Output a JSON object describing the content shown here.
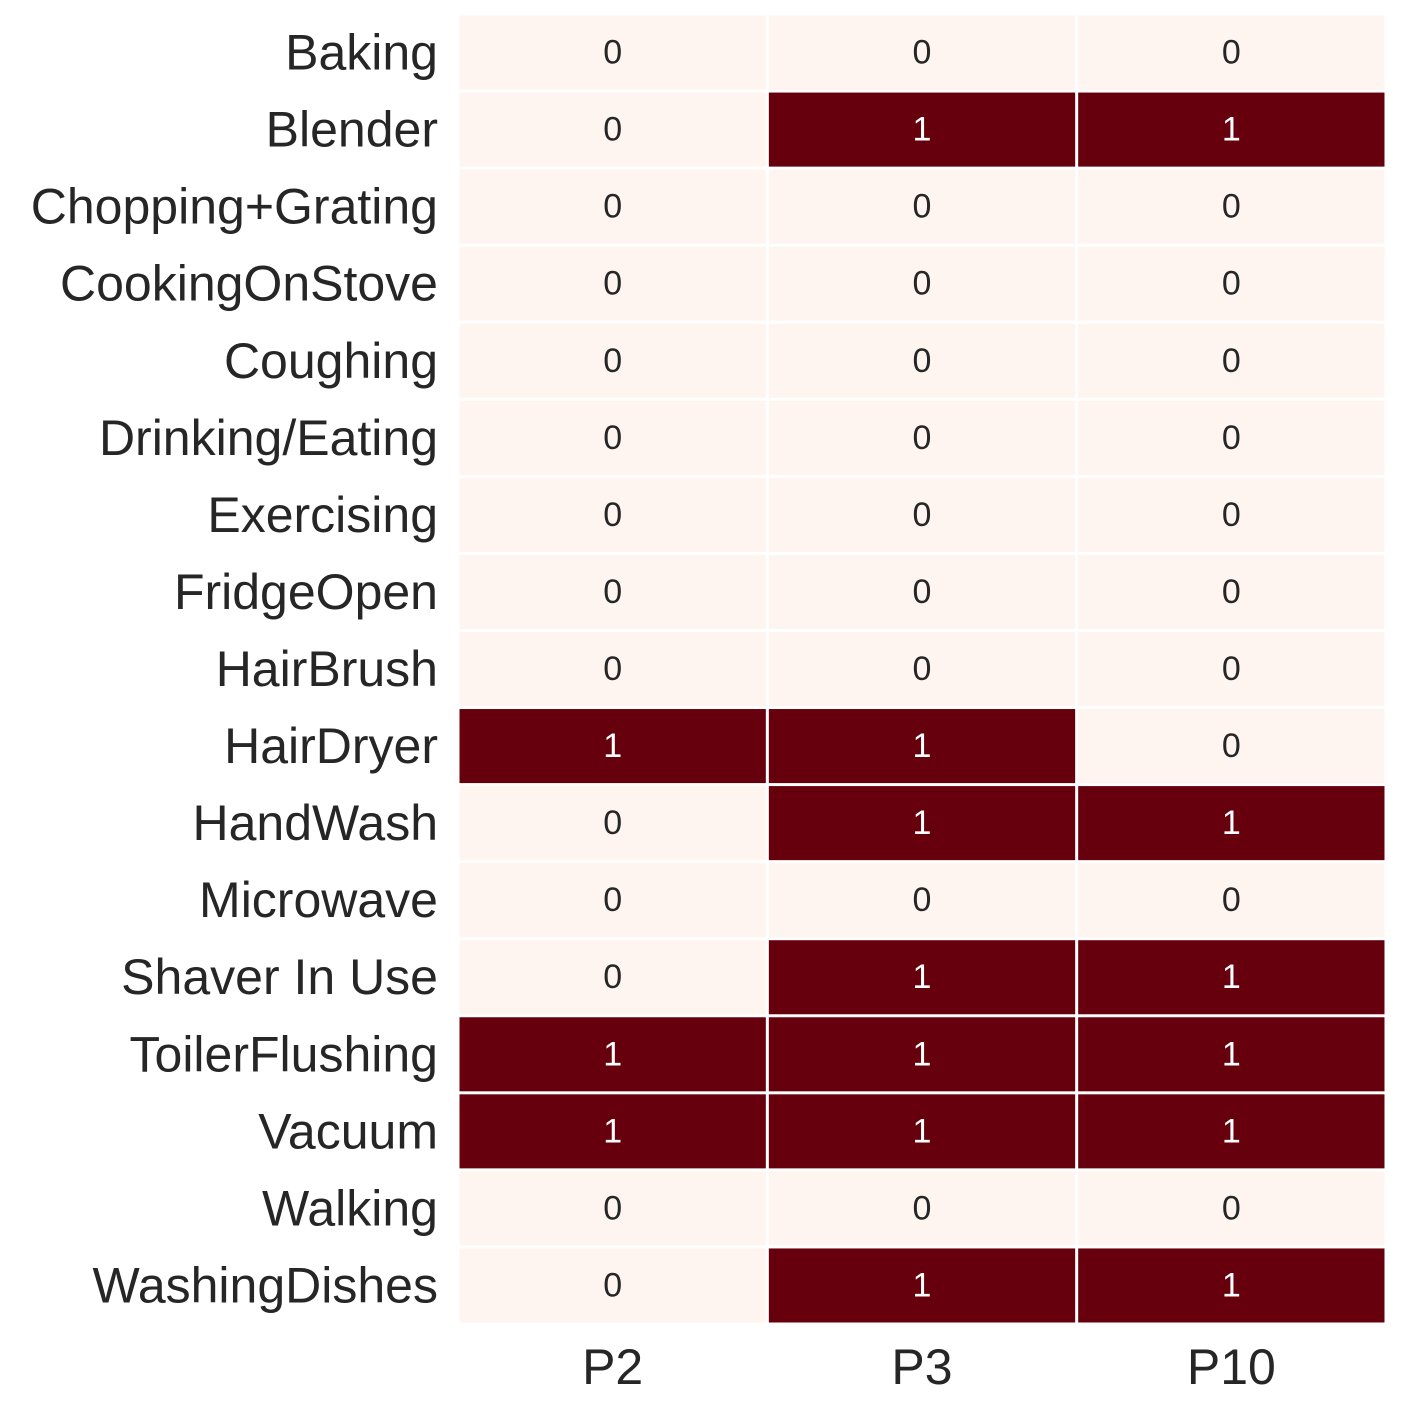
{
  "chart_data": {
    "type": "heatmap",
    "title": "",
    "xlabel": "",
    "ylabel": "",
    "x": [
      "P2",
      "P3",
      "P10"
    ],
    "y": [
      "Baking",
      "Blender",
      "Chopping+Grating",
      "CookingOnStove",
      "Coughing",
      "Drinking/Eating",
      "Exercising",
      "FridgeOpen",
      "HairBrush",
      "HairDryer",
      "HandWash",
      "Microwave",
      "Shaver In Use",
      "ToilerFlushing",
      "Vacuum",
      "Walking",
      "WashingDishes"
    ],
    "values": [
      [
        0,
        0,
        0
      ],
      [
        0,
        1,
        1
      ],
      [
        0,
        0,
        0
      ],
      [
        0,
        0,
        0
      ],
      [
        0,
        0,
        0
      ],
      [
        0,
        0,
        0
      ],
      [
        0,
        0,
        0
      ],
      [
        0,
        0,
        0
      ],
      [
        0,
        0,
        0
      ],
      [
        1,
        1,
        0
      ],
      [
        0,
        1,
        1
      ],
      [
        0,
        0,
        0
      ],
      [
        0,
        1,
        1
      ],
      [
        1,
        1,
        1
      ],
      [
        1,
        1,
        1
      ],
      [
        0,
        0,
        0
      ],
      [
        0,
        1,
        1
      ]
    ],
    "value_range": [
      0,
      1
    ],
    "colormap": "Reds",
    "colors": {
      "low": "#fff5f0",
      "high": "#67000d",
      "gridline": "#ffffff",
      "text_on_low": "#262626",
      "text_on_high": "#ffffff",
      "axis_text": "#262626"
    },
    "annotated": true,
    "colorbar": false,
    "grid": false
  }
}
